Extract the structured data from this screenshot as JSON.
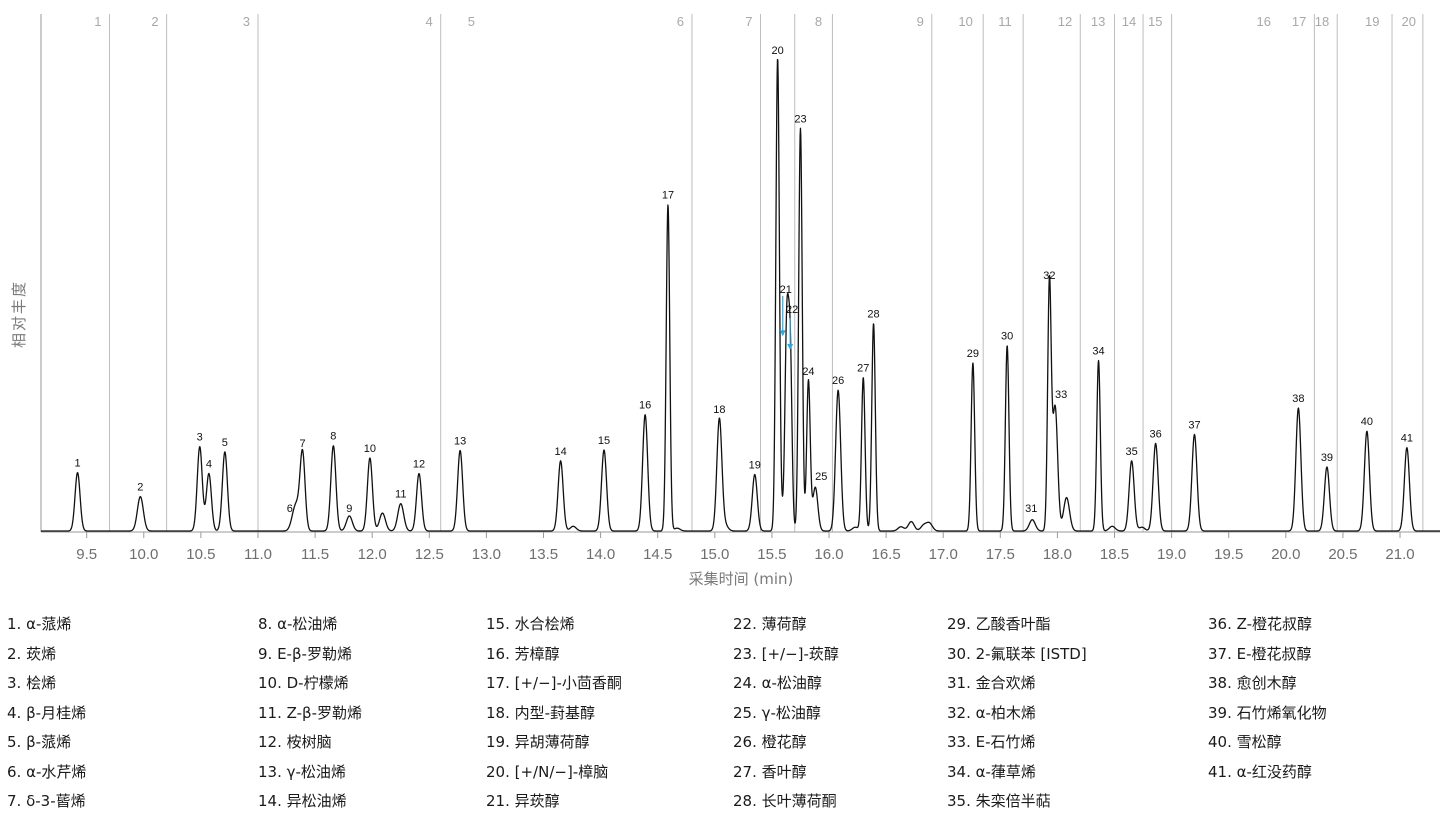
{
  "chart_data": {
    "type": "line",
    "title": "",
    "xlabel": "采集时间 (min)",
    "ylabel": "相对丰度",
    "xlim": [
      9.1,
      21.35
    ],
    "ylim": [
      0,
      100
    ],
    "x_ticks": [
      9.5,
      10.0,
      10.5,
      11.0,
      11.5,
      12.0,
      12.5,
      13.0,
      13.5,
      14.0,
      14.5,
      15.0,
      15.5,
      16.0,
      16.5,
      17.0,
      17.5,
      18.0,
      18.5,
      19.0,
      19.5,
      20.0,
      20.5,
      21.0
    ],
    "x_tick_labels": [
      "9.5",
      "10.0",
      "10.5",
      "11.0",
      "11.5",
      "12.0",
      "12.5",
      "13.0",
      "13.5",
      "14.0",
      "14.5",
      "15.0",
      "15.5",
      "16.0",
      "16.5",
      "17.0",
      "17.5",
      "18.0",
      "18.5",
      "19.0",
      "19.5",
      "20.0",
      "20.5",
      "21.0"
    ],
    "grid": false,
    "segment_boundaries": [
      9.7,
      10.2,
      11.0,
      12.6,
      14.8,
      15.4,
      15.7,
      16.03,
      16.9,
      17.35,
      17.7,
      18.2,
      18.5,
      18.75,
      19.0,
      20.25,
      20.45,
      20.93,
      21.2
    ],
    "segment_labels": [
      {
        "label": "1",
        "x": 9.63
      },
      {
        "label": "2",
        "x": 10.13
      },
      {
        "label": "3",
        "x": 10.93
      },
      {
        "label": "4",
        "x": 12.53
      },
      {
        "label": "5",
        "x": 12.9
      },
      {
        "label": "6",
        "x": 14.73
      },
      {
        "label": "7",
        "x": 15.33
      },
      {
        "label": "8",
        "x": 15.94
      },
      {
        "label": "9",
        "x": 16.83
      },
      {
        "label": "10",
        "x": 17.26
      },
      {
        "label": "11",
        "x": 17.6
      },
      {
        "label": "12",
        "x": 18.13
      },
      {
        "label": "13",
        "x": 18.42
      },
      {
        "label": "14",
        "x": 18.69
      },
      {
        "label": "15",
        "x": 18.92
      },
      {
        "label": "16",
        "x": 19.87
      },
      {
        "label": "17",
        "x": 20.18
      },
      {
        "label": "18",
        "x": 20.38
      },
      {
        "label": "19",
        "x": 20.82
      },
      {
        "label": "20",
        "x": 21.14
      }
    ],
    "peaks": [
      {
        "label": "1",
        "x": 9.42,
        "y": 12.4
      },
      {
        "label": "2",
        "x": 9.97,
        "y": 7.3
      },
      {
        "label": "3",
        "x": 10.49,
        "y": 17.9
      },
      {
        "label": "4",
        "x": 10.57,
        "y": 12.2
      },
      {
        "label": "5",
        "x": 10.71,
        "y": 16.8
      },
      {
        "label": "6",
        "x": 11.34,
        "y": 4.2
      },
      {
        "label": "7",
        "x": 11.39,
        "y": 16.6
      },
      {
        "label": "8",
        "x": 11.66,
        "y": 18.1
      },
      {
        "label": "9",
        "x": 11.8,
        "y": 3.2
      },
      {
        "label": "10",
        "x": 11.98,
        "y": 15.5
      },
      {
        "label": "11",
        "x": 12.25,
        "y": 5.8
      },
      {
        "label": "12",
        "x": 12.41,
        "y": 12.2
      },
      {
        "label": "13",
        "x": 12.77,
        "y": 17.1
      },
      {
        "label": "14",
        "x": 13.65,
        "y": 14.9
      },
      {
        "label": "15",
        "x": 14.03,
        "y": 17.2
      },
      {
        "label": "16",
        "x": 14.39,
        "y": 24.7
      },
      {
        "label": "17",
        "x": 14.59,
        "y": 69.3
      },
      {
        "label": "18",
        "x": 15.04,
        "y": 23.8
      },
      {
        "label": "19",
        "x": 15.35,
        "y": 12.0
      },
      {
        "label": "20",
        "x": 15.55,
        "y": 100.0
      },
      {
        "label": "21",
        "x": 15.63,
        "y": 40.7
      },
      {
        "label": "22",
        "x": 15.66,
        "y": 37.8
      },
      {
        "label": "23",
        "x": 15.75,
        "y": 85.5
      },
      {
        "label": "24",
        "x": 15.82,
        "y": 31.9
      },
      {
        "label": "25",
        "x": 15.88,
        "y": 9.3
      },
      {
        "label": "26",
        "x": 16.08,
        "y": 29.9
      },
      {
        "label": "27",
        "x": 16.3,
        "y": 32.6
      },
      {
        "label": "28",
        "x": 16.39,
        "y": 44.1
      },
      {
        "label": "29",
        "x": 17.26,
        "y": 35.7
      },
      {
        "label": "30",
        "x": 17.56,
        "y": 39.4
      },
      {
        "label": "31",
        "x": 17.78,
        "y": 2.4
      },
      {
        "label": "32",
        "x": 17.93,
        "y": 52.2
      },
      {
        "label": "33",
        "x": 17.98,
        "y": 26.4
      },
      {
        "label": "34",
        "x": 18.36,
        "y": 36.2
      },
      {
        "label": "35",
        "x": 18.65,
        "y": 14.9
      },
      {
        "label": "36",
        "x": 18.86,
        "y": 18.6
      },
      {
        "label": "37",
        "x": 19.2,
        "y": 20.5
      },
      {
        "label": "38",
        "x": 20.11,
        "y": 26.1
      },
      {
        "label": "39",
        "x": 20.36,
        "y": 13.6
      },
      {
        "label": "40",
        "x": 20.71,
        "y": 21.2
      },
      {
        "label": "41",
        "x": 21.06,
        "y": 17.7
      }
    ],
    "minor_peaks": [
      {
        "x": 11.31,
        "y": 2.2
      },
      {
        "x": 12.09,
        "y": 3.8
      },
      {
        "x": 13.76,
        "y": 1.0
      },
      {
        "x": 14.67,
        "y": 0.6
      },
      {
        "x": 15.09,
        "y": 1.2
      },
      {
        "x": 15.6,
        "y": 3.0
      },
      {
        "x": 16.23,
        "y": 0.8
      },
      {
        "x": 16.63,
        "y": 0.9
      },
      {
        "x": 16.72,
        "y": 2.0
      },
      {
        "x": 16.83,
        "y": 1.2
      },
      {
        "x": 16.88,
        "y": 1.6
      },
      {
        "x": 18.08,
        "y": 7.1
      },
      {
        "x": 18.48,
        "y": 1.0
      },
      {
        "x": 18.74,
        "y": 0.8
      }
    ],
    "annotations": [
      {
        "text": "21",
        "x": 15.63,
        "y": 40.7,
        "arrow": true
      },
      {
        "text": "22",
        "x": 15.66,
        "y": 37.8,
        "arrow": true
      }
    ],
    "arrow_color": "#2aa9e0",
    "line_color": "#111111",
    "divider_color": "#bdbdbd"
  },
  "legend": {
    "columns": [
      [
        "1. α-蒎烯",
        "2. 莰烯",
        "3. 桧烯",
        "4. β-月桂烯",
        "5. β-蒎烯",
        "6. α-水芹烯",
        "7. δ-3-蒈烯"
      ],
      [
        "8. α-松油烯",
        "9. E-β-罗勒烯",
        "10. D-柠檬烯",
        "11. Z-β-罗勒烯",
        "12. 桉树脑",
        "13. γ-松油烯",
        "14. 异松油烯"
      ],
      [
        "15. 水合桧烯",
        "16. 芳樟醇",
        "17. [+/−]-小茴香酮",
        "18. 内型-葑基醇",
        "19. 异胡薄荷醇",
        "20. [+/N/−]-樟脑",
        "21. 异莰醇"
      ],
      [
        "22. 薄荷醇",
        "23. [+/−]-莰醇",
        "24. α-松油醇",
        "25. γ-松油醇",
        "26. 橙花醇",
        "27. 香叶醇",
        "28. 长叶薄荷酮"
      ],
      [
        "29. 乙酸香叶酯",
        "30. 2-氟联苯 [ISTD]",
        "31. 金合欢烯",
        "32. α-柏木烯",
        "33. E-石竹烯",
        "34. α-葎草烯",
        "35. 朱栾倍半萜"
      ],
      [
        "36. Z-橙花叔醇",
        "37. E-橙花叔醇",
        "38. 愈创木醇",
        "39. 石竹烯氧化物",
        "40. 雪松醇",
        "41. α-红没药醇"
      ]
    ]
  }
}
